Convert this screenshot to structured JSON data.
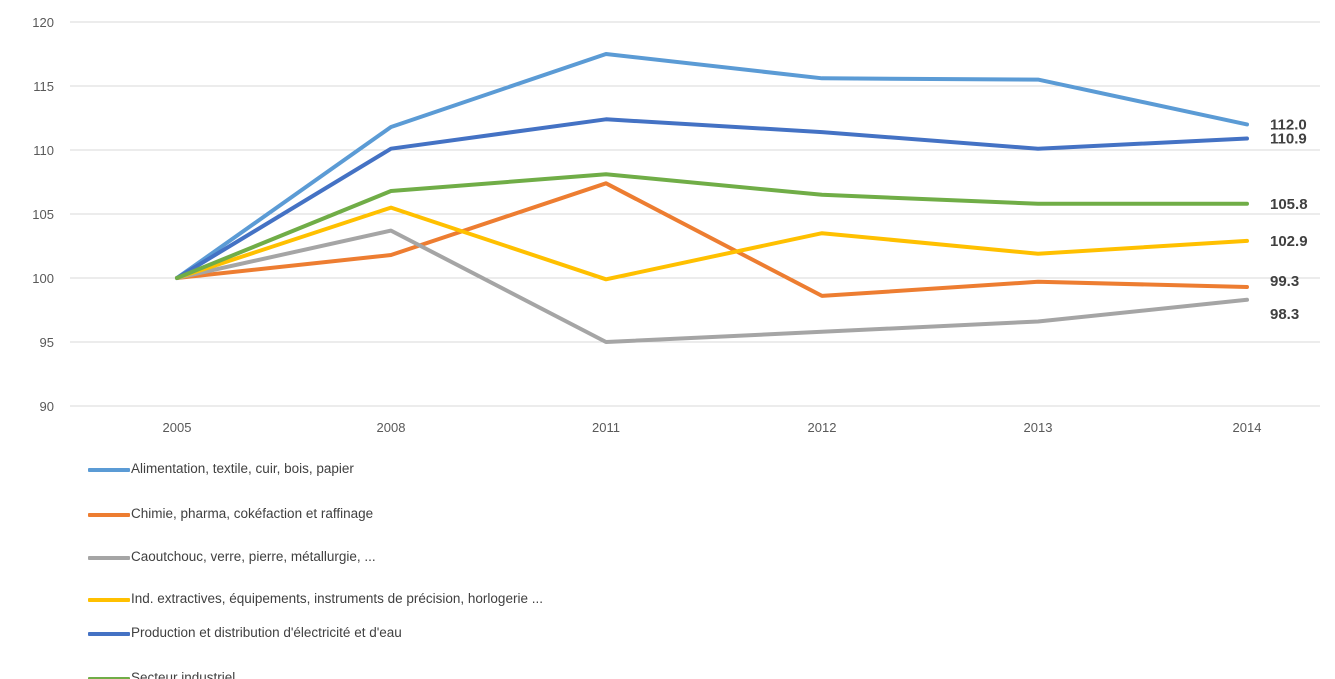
{
  "chart_data": {
    "type": "line",
    "categories": [
      "2005",
      "2008",
      "2011",
      "2012",
      "2013",
      "2014"
    ],
    "ylim": [
      90,
      120
    ],
    "yticks": [
      90,
      95,
      100,
      105,
      110,
      115,
      120
    ],
    "grid": true,
    "legend_position": "bottom-left",
    "series": [
      {
        "name": "Alimentation, textile, cuir, bois, papier",
        "color": "#5B9BD5",
        "values": [
          100,
          111.8,
          117.5,
          115.6,
          115.5,
          112.0
        ],
        "end_label": "112.0"
      },
      {
        "name": "Chimie, pharma, cokéfaction et raffinage",
        "color": "#ED7D31",
        "values": [
          100,
          101.8,
          107.4,
          98.6,
          99.7,
          99.3
        ],
        "end_label": "99.3"
      },
      {
        "name": "Caoutchouc, verre, pierre, métallurgie, ...",
        "color": "#A5A5A5",
        "values": [
          100,
          103.7,
          95.0,
          95.8,
          96.6,
          98.3
        ],
        "end_label": "98.3"
      },
      {
        "name": "Ind. extractives,  équipements,  instruments de précision, horlogerie ...",
        "color": "#FFC000",
        "values": [
          100,
          105.5,
          99.9,
          103.5,
          101.9,
          102.9
        ],
        "end_label": "102.9"
      },
      {
        "name": "Production et distribution d'électricité et d'eau",
        "color": "#4472C4",
        "values": [
          100,
          110.1,
          112.4,
          111.4,
          110.1,
          110.9
        ],
        "end_label": "110.9"
      },
      {
        "name": "Secteur industriel",
        "color": "#70AD47",
        "values": [
          100,
          106.8,
          108.1,
          106.5,
          105.8,
          105.8
        ],
        "end_label": "105.8"
      }
    ]
  }
}
